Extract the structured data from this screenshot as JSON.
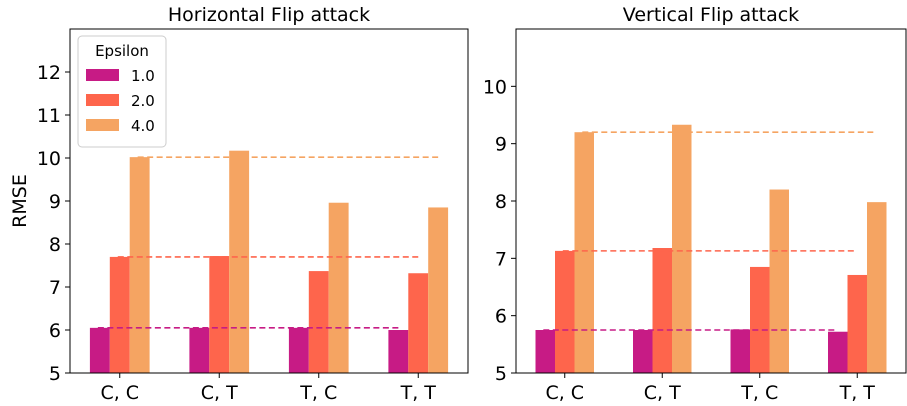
{
  "figure": {
    "ylabel": "RMSE"
  },
  "legend": {
    "title": "Epsilon",
    "placement": "top-left",
    "panel": 0
  },
  "series_colors": [
    "#c71b85",
    "#fe654c",
    "#f5a462"
  ],
  "chart_data": [
    {
      "type": "bar",
      "title": "Horizontal Flip attack",
      "ylabel": "RMSE",
      "categories": [
        "C, C",
        "C, T",
        "T, C",
        "T, T"
      ],
      "ylim": [
        5,
        13
      ],
      "yticks": [
        5,
        6,
        7,
        8,
        9,
        10,
        11,
        12
      ],
      "series": [
        {
          "name": "1.0",
          "values": [
            6.05,
            6.05,
            6.05,
            6.0
          ]
        },
        {
          "name": "2.0",
          "values": [
            7.7,
            7.72,
            7.37,
            7.32
          ]
        },
        {
          "name": "4.0",
          "values": [
            10.02,
            10.17,
            8.96,
            8.85
          ]
        }
      ],
      "reference_lines": [
        6.05,
        7.7,
        10.02
      ],
      "grid": false
    },
    {
      "type": "bar",
      "title": "Vertical Flip attack",
      "ylabel": "",
      "categories": [
        "C, C",
        "C, T",
        "T, C",
        "T, T"
      ],
      "ylim": [
        5,
        11
      ],
      "yticks": [
        5,
        6,
        7,
        8,
        9,
        10
      ],
      "series": [
        {
          "name": "1.0",
          "values": [
            5.75,
            5.75,
            5.76,
            5.72
          ]
        },
        {
          "name": "2.0",
          "values": [
            7.13,
            7.18,
            6.85,
            6.71
          ]
        },
        {
          "name": "4.0",
          "values": [
            9.2,
            9.33,
            8.2,
            7.98
          ]
        }
      ],
      "reference_lines": [
        5.75,
        7.13,
        9.2
      ],
      "grid": false
    }
  ]
}
